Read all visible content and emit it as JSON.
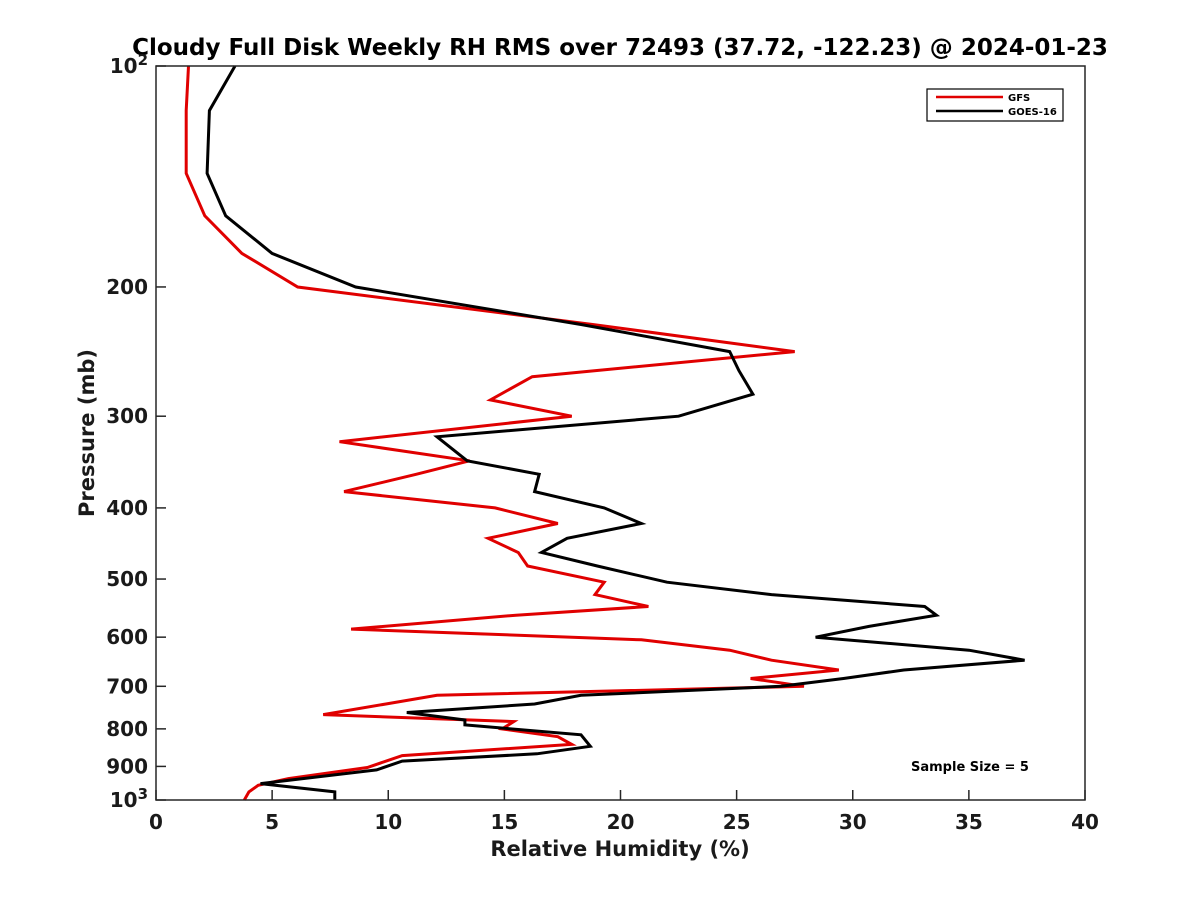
{
  "chart_data": {
    "type": "line",
    "title": "Cloudy Full Disk Weekly RH RMS over 72493 (37.72, -122.23) @ 2024-01-23",
    "xlabel": "Relative Humidity (%)",
    "ylabel": "Pressure (mb)",
    "xlim": [
      0,
      40
    ],
    "ylim": [
      100,
      1000
    ],
    "y_scale": "log",
    "y_reversed": true,
    "grid": false,
    "legend_position": "top-right",
    "x_ticks": [
      0,
      5,
      10,
      15,
      20,
      25,
      30,
      35,
      40
    ],
    "x_tick_labels": [
      "0",
      "5",
      "10",
      "15",
      "20",
      "25",
      "30",
      "35",
      "40"
    ],
    "y_ticks": [
      100,
      200,
      300,
      400,
      500,
      600,
      700,
      800,
      900,
      1000
    ],
    "y_tick_labels": [
      {
        "base": "10",
        "exp": "2"
      },
      {
        "base": "200",
        "exp": ""
      },
      {
        "base": "300",
        "exp": ""
      },
      {
        "base": "400",
        "exp": ""
      },
      {
        "base": "500",
        "exp": ""
      },
      {
        "base": "600",
        "exp": ""
      },
      {
        "base": "700",
        "exp": ""
      },
      {
        "base": "800",
        "exp": ""
      },
      {
        "base": "900",
        "exp": ""
      },
      {
        "base": "10",
        "exp": "3"
      }
    ],
    "series": [
      {
        "name": "GFS",
        "color": "#e00000",
        "x": [
          1.4,
          1.3,
          1.3,
          2.1,
          3.7,
          6.1,
          18.8,
          27.5,
          16.2,
          14.4,
          17.9,
          7.9,
          13.5,
          11.2,
          8.1,
          14.6,
          17.3,
          14.3,
          15.6,
          16.0,
          19.3,
          18.9,
          21.2,
          15.5,
          8.4,
          20.9,
          24.7,
          26.5,
          29.4,
          25.6,
          27.9,
          12.1,
          9.9,
          7.2,
          15.4,
          14.9,
          17.3,
          17.9,
          10.6,
          9.1,
          5.7,
          4.4,
          4.0,
          3.8
        ],
        "y": [
          100,
          115,
          140,
          160,
          180,
          200,
          225,
          245,
          265,
          285,
          300,
          325,
          345,
          360,
          380,
          400,
          420,
          440,
          460,
          480,
          505,
          525,
          545,
          560,
          585,
          605,
          625,
          645,
          665,
          683,
          700,
          720,
          740,
          765,
          782,
          800,
          820,
          840,
          870,
          903,
          935,
          955,
          975,
          1000
        ]
      },
      {
        "name": "GOES-16",
        "color": "#000000",
        "x": [
          3.4,
          2.3,
          2.2,
          3.0,
          5.0,
          8.6,
          18.3,
          24.7,
          25.1,
          25.7,
          22.5,
          12.1,
          13.4,
          16.5,
          16.3,
          19.3,
          20.9,
          17.7,
          16.6,
          19.0,
          22.0,
          26.5,
          33.1,
          33.6,
          30.7,
          28.4,
          35.0,
          37.4,
          32.2,
          29.6,
          26.9,
          18.3,
          16.3,
          10.8,
          13.3,
          13.3,
          18.3,
          18.7,
          16.4,
          10.6,
          9.5,
          4.5,
          7.7,
          7.7
        ],
        "y": [
          100,
          115,
          140,
          160,
          180,
          200,
          225,
          245,
          260,
          280,
          300,
          320,
          345,
          360,
          380,
          400,
          420,
          440,
          460,
          480,
          505,
          525,
          545,
          560,
          580,
          600,
          625,
          645,
          665,
          683,
          700,
          720,
          740,
          760,
          778,
          790,
          815,
          845,
          865,
          885,
          910,
          950,
          975,
          1000
        ]
      }
    ],
    "annotations": [
      {
        "text": "Sample Size = 5"
      }
    ]
  }
}
